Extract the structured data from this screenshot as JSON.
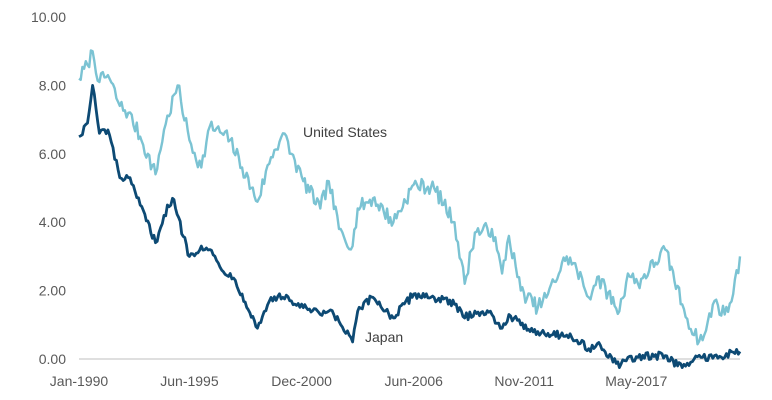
{
  "chart_data": {
    "type": "line",
    "title": "",
    "xlabel": "",
    "ylabel": "",
    "ylim": [
      0,
      10
    ],
    "yticks": [
      "10.00",
      "8.00",
      "6.00",
      "4.00",
      "2.00",
      "0.00"
    ],
    "xticks": [
      "Jan-1990",
      "Jun-1995",
      "Dec-2000",
      "Jun-2006",
      "Nov-2011",
      "May-2017"
    ],
    "grid": false,
    "legend": "none",
    "series": [
      {
        "name": "United States",
        "color": "#7bc3d3",
        "points": [
          [
            "1990-01",
            8.2
          ],
          [
            "1990-06",
            8.6
          ],
          [
            "1990-09",
            9.0
          ],
          [
            "1991-01",
            8.1
          ],
          [
            "1991-06",
            8.3
          ],
          [
            "1992-01",
            7.4
          ],
          [
            "1992-06",
            7.2
          ],
          [
            "1993-01",
            6.5
          ],
          [
            "1993-10",
            5.4
          ],
          [
            "1994-03",
            6.7
          ],
          [
            "1994-11",
            8.0
          ],
          [
            "1995-06",
            6.4
          ],
          [
            "1996-01",
            5.6
          ],
          [
            "1996-06",
            6.8
          ],
          [
            "1997-01",
            6.6
          ],
          [
            "1997-06",
            6.4
          ],
          [
            "1998-01",
            5.6
          ],
          [
            "1998-10",
            4.6
          ],
          [
            "1999-06",
            5.9
          ],
          [
            "2000-01",
            6.6
          ],
          [
            "2000-06",
            6.0
          ],
          [
            "2001-01",
            5.2
          ],
          [
            "2001-11",
            4.4
          ],
          [
            "2002-04",
            5.2
          ],
          [
            "2002-10",
            3.8
          ],
          [
            "2003-06",
            3.3
          ],
          [
            "2003-09",
            4.4
          ],
          [
            "2004-06",
            4.7
          ],
          [
            "2005-06",
            4.0
          ],
          [
            "2006-06",
            5.1
          ],
          [
            "2007-06",
            5.0
          ],
          [
            "2008-06",
            4.0
          ],
          [
            "2008-12",
            2.2
          ],
          [
            "2009-06",
            3.7
          ],
          [
            "2010-04",
            3.8
          ],
          [
            "2010-10",
            2.5
          ],
          [
            "2011-02",
            3.6
          ],
          [
            "2011-09",
            2.0
          ],
          [
            "2012-07",
            1.5
          ],
          [
            "2013-01",
            1.9
          ],
          [
            "2013-12",
            3.0
          ],
          [
            "2014-06",
            2.6
          ],
          [
            "2015-01",
            1.8
          ],
          [
            "2015-06",
            2.4
          ],
          [
            "2016-07",
            1.4
          ],
          [
            "2016-12",
            2.5
          ],
          [
            "2017-06",
            2.2
          ],
          [
            "2018-10",
            3.2
          ],
          [
            "2019-08",
            1.6
          ],
          [
            "2020-03",
            0.7
          ],
          [
            "2020-08",
            0.55
          ],
          [
            "2021-03",
            1.7
          ],
          [
            "2021-09",
            1.3
          ],
          [
            "2022-02",
            1.9
          ],
          [
            "2022-06",
            3.0
          ]
        ]
      },
      {
        "name": "Japan",
        "color": "#0d4a74",
        "points": [
          [
            "1990-01",
            6.5
          ],
          [
            "1990-06",
            6.9
          ],
          [
            "1990-09",
            8.0
          ],
          [
            "1991-01",
            6.6
          ],
          [
            "1991-06",
            6.7
          ],
          [
            "1992-01",
            5.3
          ],
          [
            "1992-06",
            5.3
          ],
          [
            "1993-01",
            4.5
          ],
          [
            "1993-10",
            3.4
          ],
          [
            "1994-03",
            4.2
          ],
          [
            "1994-08",
            4.7
          ],
          [
            "1995-06",
            3.0
          ],
          [
            "1996-01",
            3.3
          ],
          [
            "1996-06",
            3.2
          ],
          [
            "1997-01",
            2.6
          ],
          [
            "1997-06",
            2.5
          ],
          [
            "1998-01",
            1.9
          ],
          [
            "1998-10",
            0.9
          ],
          [
            "1999-06",
            1.8
          ],
          [
            "2000-01",
            1.8
          ],
          [
            "2000-06",
            1.7
          ],
          [
            "2001-01",
            1.5
          ],
          [
            "2001-11",
            1.3
          ],
          [
            "2002-04",
            1.4
          ],
          [
            "2002-10",
            1.1
          ],
          [
            "2003-06",
            0.5
          ],
          [
            "2003-09",
            1.4
          ],
          [
            "2004-06",
            1.8
          ],
          [
            "2005-06",
            1.2
          ],
          [
            "2006-06",
            1.9
          ],
          [
            "2007-06",
            1.8
          ],
          [
            "2008-06",
            1.6
          ],
          [
            "2008-12",
            1.2
          ],
          [
            "2009-06",
            1.4
          ],
          [
            "2010-04",
            1.3
          ],
          [
            "2010-10",
            0.9
          ],
          [
            "2011-02",
            1.3
          ],
          [
            "2011-09",
            1.0
          ],
          [
            "2012-07",
            0.8
          ],
          [
            "2013-01",
            0.75
          ],
          [
            "2013-12",
            0.7
          ],
          [
            "2014-06",
            0.55
          ],
          [
            "2015-01",
            0.3
          ],
          [
            "2015-06",
            0.45
          ],
          [
            "2016-07",
            -0.25
          ],
          [
            "2016-12",
            0.05
          ],
          [
            "2017-06",
            0.05
          ],
          [
            "2018-10",
            0.1
          ],
          [
            "2019-08",
            -0.25
          ],
          [
            "2020-03",
            0.0
          ],
          [
            "2020-08",
            0.05
          ],
          [
            "2021-03",
            0.1
          ],
          [
            "2021-09",
            0.05
          ],
          [
            "2022-02",
            0.2
          ],
          [
            "2022-06",
            0.22
          ]
        ]
      }
    ]
  }
}
